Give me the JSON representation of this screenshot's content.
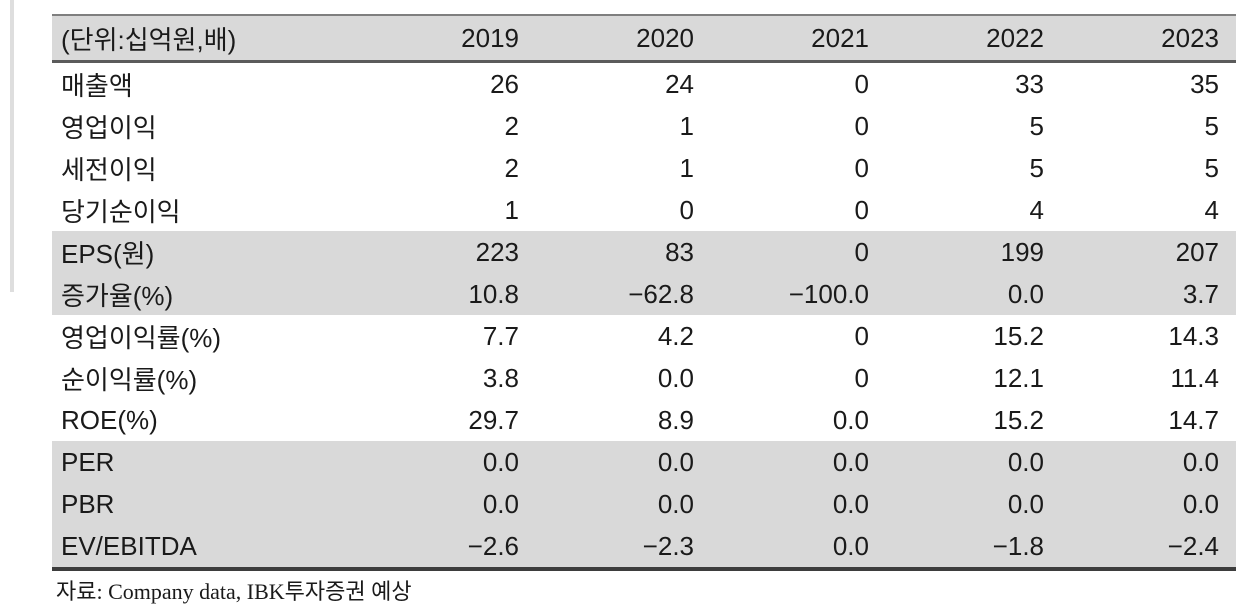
{
  "table": {
    "unit_label": "(단위:십억원,배)",
    "years": [
      "2019",
      "2020",
      "2021",
      "2022",
      "2023"
    ],
    "rows": [
      {
        "label": "매출액",
        "values": [
          "26",
          "24",
          "0",
          "33",
          "35"
        ],
        "shaded": false
      },
      {
        "label": "영업이익",
        "values": [
          "2",
          "1",
          "0",
          "5",
          "5"
        ],
        "shaded": false
      },
      {
        "label": "세전이익",
        "values": [
          "2",
          "1",
          "0",
          "5",
          "5"
        ],
        "shaded": false
      },
      {
        "label": "당기순이익",
        "values": [
          "1",
          "0",
          "0",
          "4",
          "4"
        ],
        "shaded": false
      },
      {
        "label": "EPS(원)",
        "values": [
          "223",
          "83",
          "0",
          "199",
          "207"
        ],
        "shaded": true
      },
      {
        "label": "증가율(%)",
        "values": [
          "10.8",
          "−62.8",
          "−100.0",
          "0.0",
          "3.7"
        ],
        "shaded": true
      },
      {
        "label": "영업이익률(%)",
        "values": [
          "7.7",
          "4.2",
          "0",
          "15.2",
          "14.3"
        ],
        "shaded": false
      },
      {
        "label": "순이익률(%)",
        "values": [
          "3.8",
          "0.0",
          "0",
          "12.1",
          "11.4"
        ],
        "shaded": false
      },
      {
        "label": "ROE(%)",
        "values": [
          "29.7",
          "8.9",
          "0.0",
          "15.2",
          "14.7"
        ],
        "shaded": false
      },
      {
        "label": "PER",
        "values": [
          "0.0",
          "0.0",
          "0.0",
          "0.0",
          "0.0"
        ],
        "shaded": true
      },
      {
        "label": "PBR",
        "values": [
          "0.0",
          "0.0",
          "0.0",
          "0.0",
          "0.0"
        ],
        "shaded": true
      },
      {
        "label": "EV/EBITDA",
        "values": [
          "−2.6",
          "−2.3",
          "0.0",
          "−1.8",
          "−2.4"
        ],
        "shaded": true
      }
    ]
  },
  "footer": {
    "source": "자료: Company data, IBK투자증권 예상"
  },
  "colors": {
    "shaded_row_bg": "#d9d9d9",
    "border_top": "#7f7f7f",
    "border_header_bottom": "#5b5b5b",
    "border_table_bottom": "#3d3d3d"
  },
  "chart_data": {
    "type": "table",
    "title": "(단위:십억원,배)",
    "columns": [
      "2019",
      "2020",
      "2021",
      "2022",
      "2023"
    ],
    "row_labels": [
      "매출액",
      "영업이익",
      "세전이익",
      "당기순이익",
      "EPS(원)",
      "증가율(%)",
      "영업이익률(%)",
      "순이익률(%)",
      "ROE(%)",
      "PER",
      "PBR",
      "EV/EBITDA"
    ],
    "values": [
      [
        26,
        24,
        0,
        33,
        35
      ],
      [
        2,
        1,
        0,
        5,
        5
      ],
      [
        2,
        1,
        0,
        5,
        5
      ],
      [
        1,
        0,
        0,
        4,
        4
      ],
      [
        223,
        83,
        0,
        199,
        207
      ],
      [
        10.8,
        -62.8,
        -100.0,
        0.0,
        3.7
      ],
      [
        7.7,
        4.2,
        0,
        15.2,
        14.3
      ],
      [
        3.8,
        0.0,
        0,
        12.1,
        11.4
      ],
      [
        29.7,
        8.9,
        0.0,
        15.2,
        14.7
      ],
      [
        0.0,
        0.0,
        0.0,
        0.0,
        0.0
      ],
      [
        0.0,
        0.0,
        0.0,
        0.0,
        0.0
      ],
      [
        -2.6,
        -2.3,
        0.0,
        -1.8,
        -2.4
      ]
    ],
    "source_note": "자료: Company data, IBK투자증권 예상"
  }
}
